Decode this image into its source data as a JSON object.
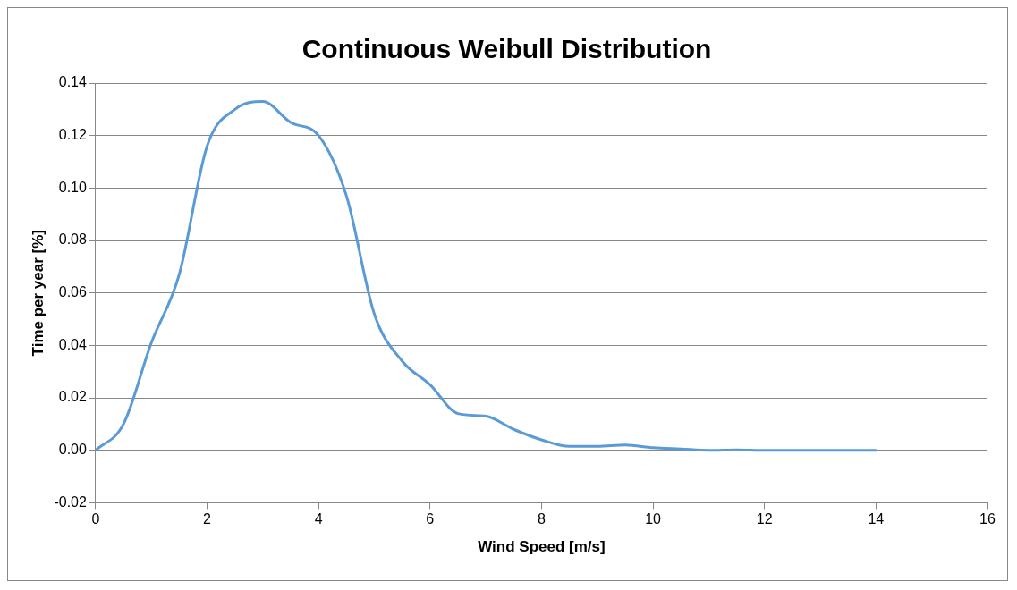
{
  "chart_data": {
    "type": "line",
    "title": "Continuous Weibull Distribution",
    "xlabel": "Wind Speed [m/s]",
    "ylabel": "Time per year [%]",
    "x": [
      0,
      0.5,
      1,
      1.5,
      2,
      2.5,
      3,
      3.5,
      4,
      4.5,
      5,
      5.5,
      6,
      6.5,
      7,
      7.5,
      8,
      8.5,
      9,
      9.5,
      10,
      10.5,
      11,
      11.5,
      12,
      13,
      14
    ],
    "series": [
      {
        "color": "#5b9bd5",
        "values": [
          0,
          0.01,
          0.041,
          0.067,
          0.116,
          0.13,
          0.133,
          0.125,
          0.12,
          0.097,
          0.052,
          0.034,
          0.025,
          0.014,
          0.013,
          0.008,
          0.004,
          0.0015,
          0.0015,
          0.002,
          0.001,
          0.0005,
          0,
          0.0002,
          0,
          0,
          0
        ]
      }
    ],
    "xlim": [
      0,
      16
    ],
    "xticks": [
      0,
      2,
      4,
      6,
      8,
      10,
      12,
      14,
      16
    ],
    "ylim": [
      -0.02,
      0.14
    ],
    "yticks": [
      {
        "value": -0.02,
        "label": "-0.02"
      },
      {
        "value": 0,
        "label": "0.00"
      },
      {
        "value": 0.02,
        "label": "0.02"
      },
      {
        "value": 0.04,
        "label": "0.04"
      },
      {
        "value": 0.06,
        "label": "0.06"
      },
      {
        "value": 0.08,
        "label": "0.08"
      },
      {
        "value": 0.1,
        "label": "0.10"
      },
      {
        "value": 0.12,
        "label": "0.12"
      },
      {
        "value": 0.14,
        "label": "0.14"
      }
    ],
    "grid": "y",
    "legend": false,
    "marker": "none",
    "line_style": "solid"
  }
}
